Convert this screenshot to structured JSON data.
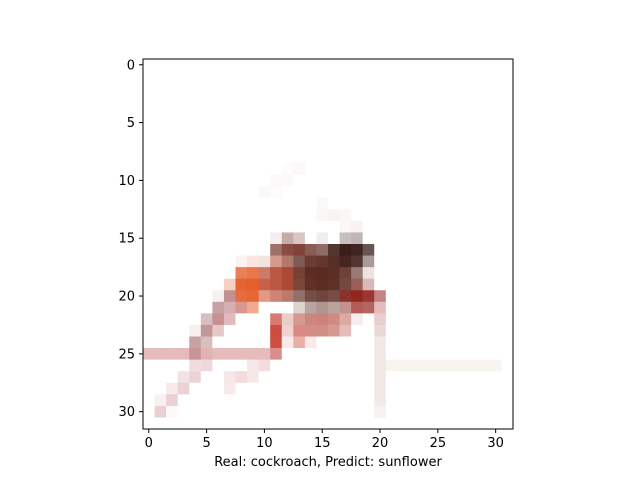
{
  "chart_data": {
    "type": "heatmap",
    "title": "",
    "xlabel": "Real: cockroach, Predict: sunflower",
    "ylabel": "",
    "xlim": [
      -0.5,
      31.5
    ],
    "ylim": [
      31.5,
      -0.5
    ],
    "x_ticks": [
      0,
      5,
      10,
      15,
      20,
      25,
      30
    ],
    "y_ticks": [
      0,
      5,
      10,
      15,
      20,
      25,
      30
    ],
    "grid": false,
    "image_size": [
      32,
      32
    ],
    "background_color": "#ffffff",
    "blobs": [
      {
        "cx": 15.0,
        "cy": 18.3,
        "rx": 4.2,
        "ry": 3.4,
        "color": "#5b2a20",
        "strength": 1.0
      },
      {
        "cx": 17.6,
        "cy": 16.2,
        "rx": 2.4,
        "ry": 1.4,
        "color": "#2a0c08",
        "strength": 0.9
      },
      {
        "cx": 18.4,
        "cy": 20.2,
        "rx": 2.2,
        "ry": 1.4,
        "color": "#8a0a04",
        "strength": 0.85
      },
      {
        "cx": 8.6,
        "cy": 19.2,
        "rx": 1.8,
        "ry": 2.4,
        "color": "#e3531e",
        "strength": 0.95
      },
      {
        "cx": 11.2,
        "cy": 18.6,
        "rx": 2.0,
        "ry": 2.2,
        "color": "#b03a22",
        "strength": 0.85
      },
      {
        "cx": 12.2,
        "cy": 15.8,
        "rx": 2.2,
        "ry": 1.0,
        "color": "#6e2018",
        "strength": 0.8
      },
      {
        "cx": 14.8,
        "cy": 22.4,
        "rx": 3.6,
        "ry": 1.2,
        "color": "#b85246",
        "strength": 0.75
      },
      {
        "cx": 11.0,
        "cy": 23.4,
        "rx": 1.0,
        "ry": 2.2,
        "color": "#c22c1c",
        "strength": 0.85
      },
      {
        "cx": 13.0,
        "cy": 23.5,
        "rx": 1.2,
        "ry": 1.4,
        "color": "#d86f6a",
        "strength": 0.6
      },
      {
        "cx": 20.0,
        "cy": 22.0,
        "rx": 0.8,
        "ry": 1.4,
        "color": "#d88b88",
        "strength": 0.5
      }
    ],
    "strokes": [
      {
        "from": [
          0,
          25.0
        ],
        "to": [
          11,
          25.0
        ],
        "width": 1.0,
        "color": "#d68d8f",
        "strength": 0.6
      },
      {
        "from": [
          4,
          24.5
        ],
        "to": [
          7,
          20.0
        ],
        "width": 0.9,
        "color": "#a86a6c",
        "strength": 0.7
      },
      {
        "from": [
          6,
          22.5
        ],
        "to": [
          8,
          21.0
        ],
        "width": 0.8,
        "color": "#c67a80",
        "strength": 0.55
      },
      {
        "from": [
          1,
          30.0
        ],
        "to": [
          5,
          25.5
        ],
        "width": 0.8,
        "color": "#d5a0a5",
        "strength": 0.5
      },
      {
        "from": [
          20,
          22.0
        ],
        "to": [
          20,
          29.5
        ],
        "width": 0.8,
        "color": "#e7d5d5",
        "strength": 0.55
      },
      {
        "from": [
          21,
          26.0
        ],
        "to": [
          30,
          26.0
        ],
        "width": 0.9,
        "color": "#efe6dd",
        "strength": 0.45
      },
      {
        "from": [
          7,
          27.5
        ],
        "to": [
          10,
          26.0
        ],
        "width": 0.8,
        "color": "#e6b0b3",
        "strength": 0.45
      },
      {
        "from": [
          10,
          11.0
        ],
        "to": [
          13,
          9.0
        ],
        "width": 0.8,
        "color": "#f3ecea",
        "strength": 0.35
      },
      {
        "from": [
          15,
          12.5
        ],
        "to": [
          18,
          14.0
        ],
        "width": 0.8,
        "color": "#ebdcd8",
        "strength": 0.35
      }
    ]
  }
}
